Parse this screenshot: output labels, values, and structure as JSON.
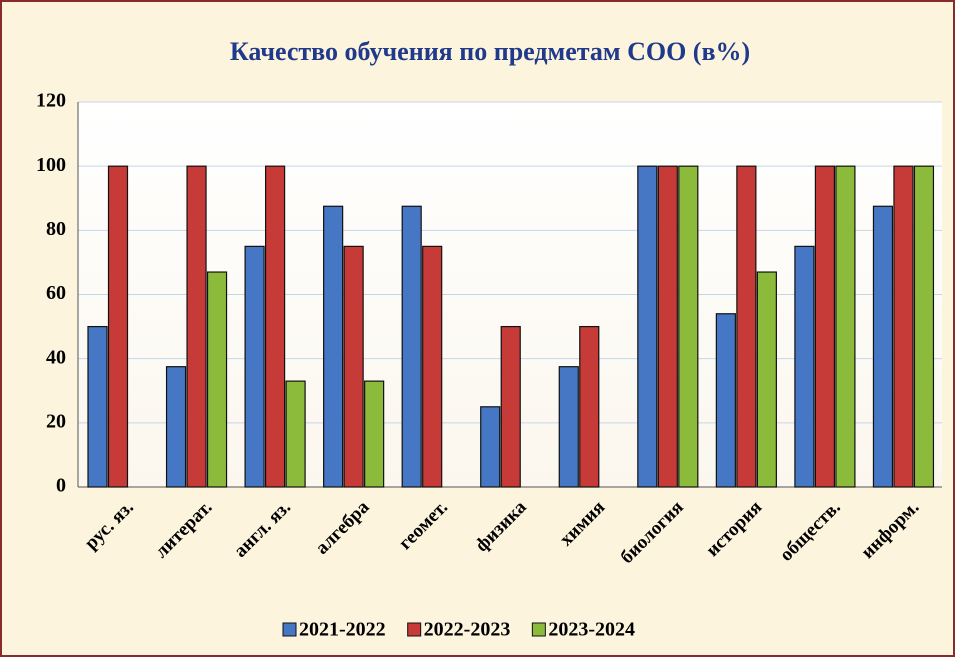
{
  "chart_data": {
    "type": "bar",
    "title": "Качество обучения по предметам СОО (в%)",
    "categories": [
      "рус. яз.",
      "литерат.",
      "англ. яз.",
      "алгебра",
      "геомет.",
      "физика",
      "химия",
      "биология",
      "история",
      "обществ.",
      "информ."
    ],
    "series": [
      {
        "name": "2021-2022",
        "color": "#4677c4",
        "values": [
          50,
          37.5,
          75,
          87.5,
          87.5,
          25,
          37.5,
          100,
          54,
          75,
          87.5
        ]
      },
      {
        "name": "2022-2023",
        "color": "#c63b38",
        "values": [
          100,
          100,
          100,
          75,
          75,
          50,
          50,
          100,
          100,
          100,
          100
        ]
      },
      {
        "name": "2023-2024",
        "color": "#8cbb3c",
        "values": [
          null,
          67,
          33,
          33,
          null,
          null,
          null,
          100,
          67,
          100,
          100
        ]
      }
    ],
    "ylim": [
      0,
      120
    ],
    "yticks": [
      0,
      20,
      40,
      60,
      80,
      100,
      120
    ],
    "grid": true,
    "legend": "bottom"
  }
}
